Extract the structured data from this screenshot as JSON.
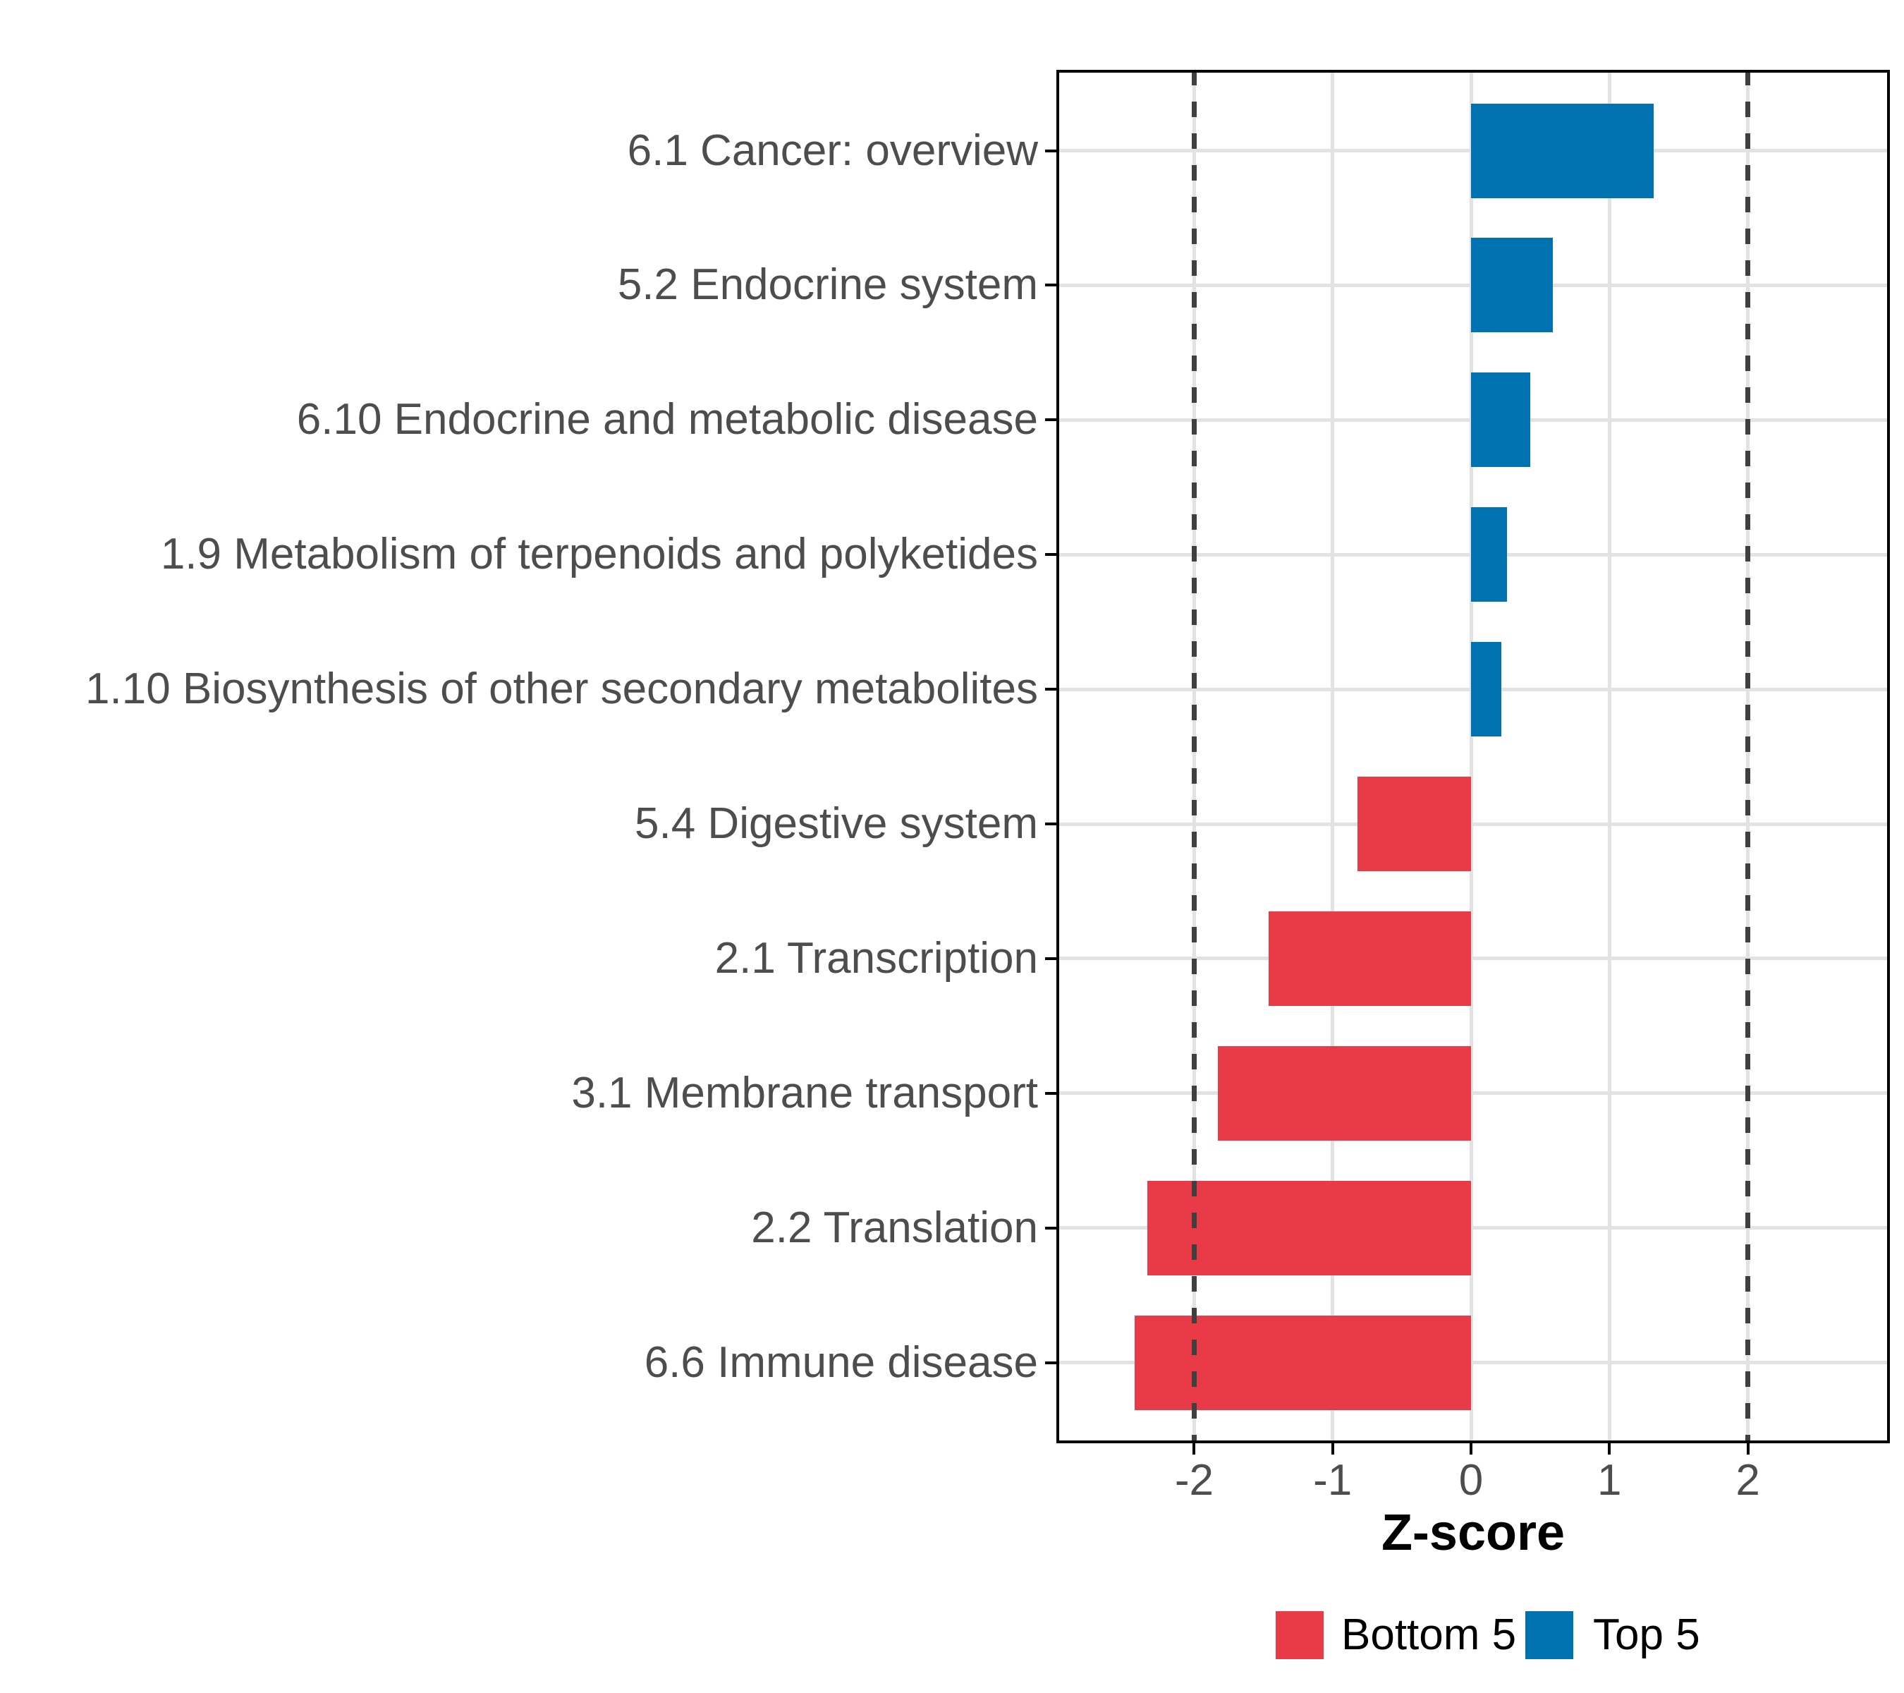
{
  "chart_data": {
    "type": "bar",
    "orientation": "horizontal",
    "xlabel": "Z-score",
    "categories": [
      "6.1 Cancer: overview",
      "5.2 Endocrine system",
      "6.10 Endocrine and metabolic disease",
      "1.9 Metabolism of terpenoids and polyketides",
      "1.10 Biosynthesis of other secondary metabolites",
      "5.4 Digestive system",
      "2.1 Transcription",
      "3.1 Membrane transport",
      "2.2 Translation",
      "6.6 Immune disease"
    ],
    "values": [
      1.32,
      0.59,
      0.43,
      0.26,
      0.22,
      -0.82,
      -1.46,
      -1.83,
      -2.34,
      -2.43
    ],
    "groups": [
      "Top 5",
      "Top 5",
      "Top 5",
      "Top 5",
      "Top 5",
      "Bottom 5",
      "Bottom 5",
      "Bottom 5",
      "Bottom 5",
      "Bottom 5"
    ],
    "group_colors": {
      "Bottom 5": "#E93A47",
      "Top 5": "#0072B2"
    },
    "x_ticks": [
      -2,
      -1,
      0,
      1,
      2
    ],
    "x_tick_labels": [
      "-2",
      "-1",
      "0",
      "1",
      "2"
    ],
    "xlim": [
      -2.99,
      3.03
    ],
    "reference_lines": [
      -2,
      2
    ],
    "grid": "major-only",
    "legend": {
      "position": "bottom",
      "entries": [
        {
          "label": "Bottom 5",
          "color": "#E93A47"
        },
        {
          "label": "Top 5",
          "color": "#0072B2"
        }
      ]
    },
    "style_colors": {
      "gridline": "#E2E2E2",
      "reference_line": "#3F3F3F",
      "axis_text": "#4D4D4D",
      "axis_title": "#000000",
      "panel_border": "#000000",
      "background": "#FFFFFF"
    }
  }
}
